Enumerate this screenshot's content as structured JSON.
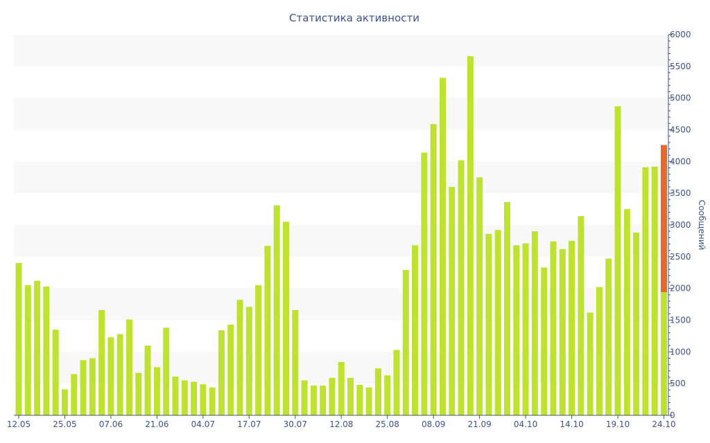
{
  "chart_data": {
    "type": "bar",
    "title": "Статистика активности",
    "xlabel": "",
    "ylabel": "Сообщений",
    "ylim": [
      0,
      6000
    ],
    "yticks": [
      0,
      500,
      1000,
      1500,
      2000,
      2500,
      3000,
      3500,
      4000,
      4500,
      5000,
      5500,
      6000
    ],
    "ytick_labels": [
      "0",
      "500",
      "1000",
      "1500",
      "2000",
      "2500",
      "3000",
      "3500",
      "4000",
      "4500",
      "5000",
      "5500",
      "6000"
    ],
    "y_axis_position": "right",
    "grid": "alternating horizontal bands",
    "xtick_labels": [
      {
        "index": 0,
        "label": "12.05"
      },
      {
        "index": 5,
        "label": "25.05"
      },
      {
        "index": 10,
        "label": "07.06"
      },
      {
        "index": 15,
        "label": "21.06"
      },
      {
        "index": 20,
        "label": "04.07"
      },
      {
        "index": 25,
        "label": "17.07"
      },
      {
        "index": 30,
        "label": "30.07"
      },
      {
        "index": 35,
        "label": "12.08"
      },
      {
        "index": 40,
        "label": "25.08"
      },
      {
        "index": 45,
        "label": "08.09"
      },
      {
        "index": 50,
        "label": "21.09"
      },
      {
        "index": 55,
        "label": "04.10"
      },
      {
        "index": 60,
        "label": "14.10"
      },
      {
        "index": 65,
        "label": "19.10"
      },
      {
        "index": 70,
        "label": "24.10"
      }
    ],
    "colors": {
      "bar": "#bde22f",
      "highlight": "#e36a2c",
      "band": "#f8f8f8",
      "axis": "#3f5286",
      "title": "#3f5286"
    },
    "values": [
      2400,
      2050,
      2120,
      2030,
      1350,
      410,
      650,
      870,
      900,
      1660,
      1230,
      1280,
      1510,
      670,
      1100,
      760,
      1380,
      610,
      550,
      530,
      490,
      440,
      1340,
      1430,
      1820,
      1710,
      2050,
      2670,
      3310,
      3050,
      1660,
      550,
      470,
      470,
      590,
      840,
      590,
      480,
      440,
      740,
      630,
      1030,
      2290,
      2680,
      4140,
      4590,
      5320,
      3600,
      4020,
      5660,
      3750,
      2860,
      2920,
      3360,
      2680,
      2710,
      2900,
      2330,
      2740,
      2620,
      2750,
      3140,
      1620,
      2020,
      2470,
      4870,
      3250,
      2880,
      3910,
      3920,
      1940
    ],
    "highlight": {
      "index": 70,
      "from": 1940,
      "to": 4260
    }
  }
}
